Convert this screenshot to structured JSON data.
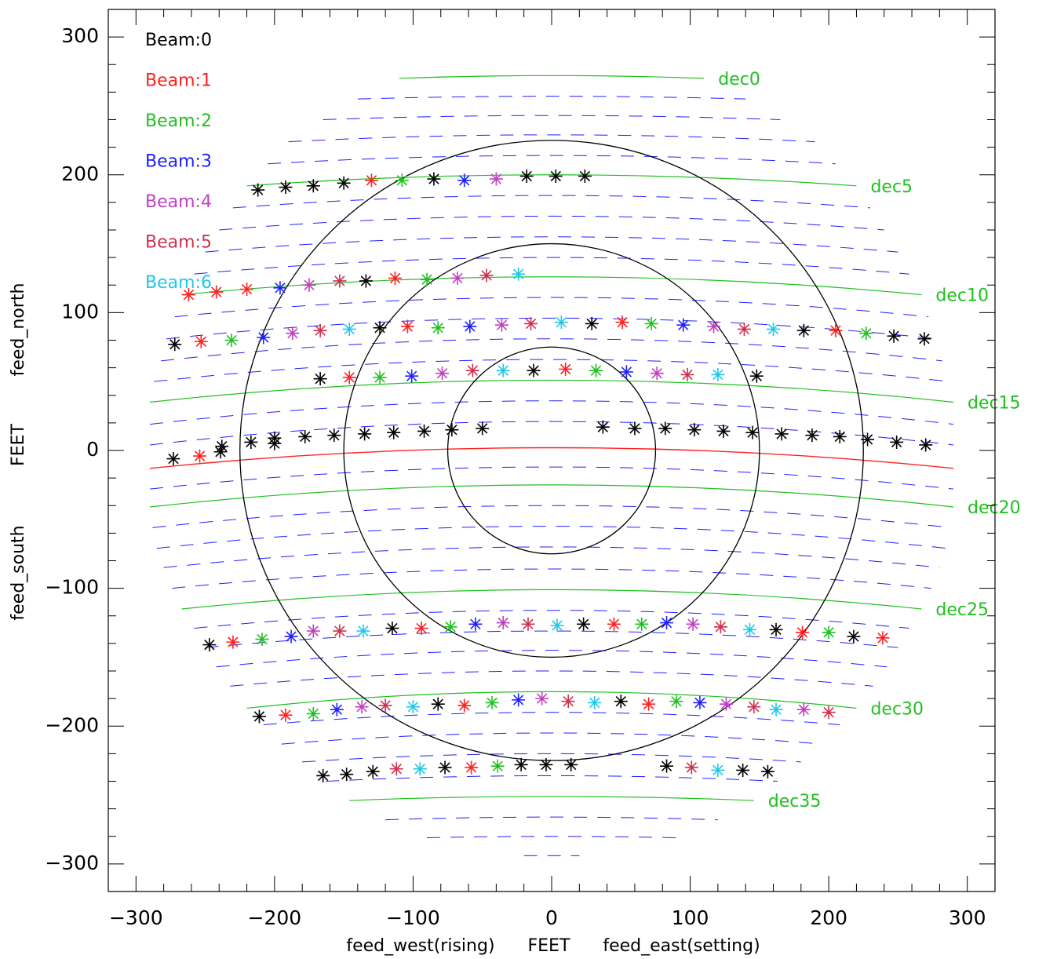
{
  "chart_data": {
    "type": "scatter",
    "title": "",
    "xlabel": "feed_west(rising)      FEET      feed_east(setting)",
    "ylabel_parts": [
      "feed_south",
      "FEET",
      "feed_north"
    ],
    "xlim": [
      -320,
      320
    ],
    "ylim": [
      -320,
      320
    ],
    "xticks": [
      -300,
      -200,
      -100,
      0,
      100,
      200,
      300
    ],
    "yticks": [
      -300,
      -200,
      -100,
      0,
      100,
      200,
      300
    ],
    "xtick_labels": [
      "−300",
      "−200",
      "−100",
      "0",
      "100",
      "200",
      "300"
    ],
    "ytick_labels": [
      "−300",
      "−200",
      "−100",
      "0",
      "100",
      "200",
      "300"
    ],
    "grid": false,
    "legend_position": "top-left",
    "beam_colors": [
      "#000000",
      "#ff2020",
      "#20c020",
      "#2020ff",
      "#c040c0",
      "#d03050",
      "#20c8e8"
    ],
    "legend": [
      "Beam:0",
      "Beam:1",
      "Beam:2",
      "Beam:3",
      "Beam:4",
      "Beam:5",
      "Beam:6"
    ],
    "circles": {
      "radii": [
        75,
        150,
        225
      ],
      "color": "#000000"
    },
    "zenith_line": {
      "color": "#ff2020",
      "y_center": 2,
      "y_edge": -13,
      "half_width": 290
    },
    "dec_lines": [
      {
        "label": "dec0",
        "y_center": 272,
        "y_edge": 270,
        "half_width": 110
      },
      {
        "label": "dec5",
        "y_center": 200,
        "y_edge": 192,
        "half_width": 220
      },
      {
        "label": "dec10",
        "y_center": 126,
        "y_edge": 113,
        "half_width": 267
      },
      {
        "label": "dec15",
        "y_center": 51,
        "y_edge": 35,
        "half_width": 290
      },
      {
        "label": "dec20",
        "y_center": -25,
        "y_edge": -41,
        "half_width": 290
      },
      {
        "label": "dec25",
        "y_center": -101,
        "y_edge": -115,
        "half_width": 267
      },
      {
        "label": "dec30",
        "y_center": -175,
        "y_edge": -187,
        "half_width": 220
      },
      {
        "label": "dec35",
        "y_center": -251,
        "y_edge": -254,
        "half_width": 146
      }
    ],
    "dec_line_color": "#20c020",
    "dashed_line_color": "#2020ff",
    "dashed_lines": [
      {
        "y_center": 257,
        "y_edge": 255,
        "half_width": 140
      },
      {
        "y_center": 243,
        "y_edge": 240,
        "half_width": 165
      },
      {
        "y_center": 229,
        "y_edge": 224,
        "half_width": 190
      },
      {
        "y_center": 214,
        "y_edge": 208,
        "half_width": 205
      },
      {
        "y_center": 185,
        "y_edge": 176,
        "half_width": 230
      },
      {
        "y_center": 170,
        "y_edge": 160,
        "half_width": 240
      },
      {
        "y_center": 155,
        "y_edge": 144,
        "half_width": 250
      },
      {
        "y_center": 140,
        "y_edge": 128,
        "half_width": 258
      },
      {
        "y_center": 111,
        "y_edge": 97,
        "half_width": 272
      },
      {
        "y_center": 96,
        "y_edge": 81,
        "half_width": 278
      },
      {
        "y_center": 81,
        "y_edge": 65,
        "half_width": 282
      },
      {
        "y_center": 66,
        "y_edge": 50,
        "half_width": 287
      },
      {
        "y_center": 36,
        "y_edge": 19,
        "half_width": 290
      },
      {
        "y_center": 21,
        "y_edge": 4,
        "half_width": 290
      },
      {
        "y_center": -12,
        "y_edge": -28,
        "half_width": 290
      },
      {
        "y_center": -40,
        "y_edge": -56,
        "half_width": 288
      },
      {
        "y_center": -55,
        "y_edge": -71,
        "half_width": 285
      },
      {
        "y_center": -70,
        "y_edge": -85,
        "half_width": 280
      },
      {
        "y_center": -86,
        "y_edge": -100,
        "half_width": 274
      },
      {
        "y_center": -116,
        "y_edge": -129,
        "half_width": 258
      },
      {
        "y_center": -131,
        "y_edge": -143,
        "half_width": 250
      },
      {
        "y_center": -145,
        "y_edge": -157,
        "half_width": 242
      },
      {
        "y_center": -160,
        "y_edge": -171,
        "half_width": 232
      },
      {
        "y_center": -190,
        "y_edge": -199,
        "half_width": 208
      },
      {
        "y_center": -205,
        "y_edge": -213,
        "half_width": 195
      },
      {
        "y_center": -220,
        "y_edge": -226,
        "half_width": 180
      },
      {
        "y_center": -236,
        "y_edge": -240,
        "half_width": 163
      },
      {
        "y_center": -266,
        "y_edge": -268,
        "half_width": 120
      },
      {
        "y_center": -280,
        "y_edge": -281,
        "half_width": 90
      },
      {
        "y_center": -294,
        "y_edge": -294,
        "half_width": 20
      }
    ],
    "points": [
      {
        "x": -212,
        "y": 189,
        "beam": 0
      },
      {
        "x": -192,
        "y": 191,
        "beam": 0
      },
      {
        "x": -172,
        "y": 192,
        "beam": 0
      },
      {
        "x": -150,
        "y": 194,
        "beam": 0
      },
      {
        "x": -130,
        "y": 196,
        "beam": 1
      },
      {
        "x": -108,
        "y": 196,
        "beam": 2
      },
      {
        "x": -85,
        "y": 197,
        "beam": 0
      },
      {
        "x": -63,
        "y": 196,
        "beam": 3
      },
      {
        "x": -40,
        "y": 197,
        "beam": 4
      },
      {
        "x": -18,
        "y": 199,
        "beam": 0
      },
      {
        "x": 3,
        "y": 199,
        "beam": 0
      },
      {
        "x": 24,
        "y": 199,
        "beam": 0
      },
      {
        "x": -262,
        "y": 113,
        "beam": 1
      },
      {
        "x": -242,
        "y": 115,
        "beam": 1
      },
      {
        "x": -220,
        "y": 117,
        "beam": 1
      },
      {
        "x": -196,
        "y": 118,
        "beam": 3
      },
      {
        "x": -175,
        "y": 120,
        "beam": 4
      },
      {
        "x": -153,
        "y": 123,
        "beam": 5
      },
      {
        "x": -134,
        "y": 123,
        "beam": 0
      },
      {
        "x": -113,
        "y": 125,
        "beam": 1
      },
      {
        "x": -90,
        "y": 124,
        "beam": 2
      },
      {
        "x": -68,
        "y": 125,
        "beam": 4
      },
      {
        "x": -47,
        "y": 127,
        "beam": 5
      },
      {
        "x": -24,
        "y": 128,
        "beam": 6
      },
      {
        "x": -272,
        "y": 77,
        "beam": 0
      },
      {
        "x": -253,
        "y": 79,
        "beam": 1
      },
      {
        "x": -231,
        "y": 80,
        "beam": 2
      },
      {
        "x": -208,
        "y": 82,
        "beam": 3
      },
      {
        "x": -187,
        "y": 85,
        "beam": 4
      },
      {
        "x": -167,
        "y": 87,
        "beam": 5
      },
      {
        "x": -146,
        "y": 88,
        "beam": 6
      },
      {
        "x": -124,
        "y": 89,
        "beam": 0
      },
      {
        "x": -104,
        "y": 90,
        "beam": 1
      },
      {
        "x": -82,
        "y": 89,
        "beam": 2
      },
      {
        "x": -59,
        "y": 90,
        "beam": 3
      },
      {
        "x": -36,
        "y": 91,
        "beam": 4
      },
      {
        "x": -15,
        "y": 92,
        "beam": 5
      },
      {
        "x": 7,
        "y": 93,
        "beam": 6
      },
      {
        "x": 29,
        "y": 92,
        "beam": 0
      },
      {
        "x": 51,
        "y": 93,
        "beam": 1
      },
      {
        "x": 72,
        "y": 92,
        "beam": 2
      },
      {
        "x": 95,
        "y": 91,
        "beam": 3
      },
      {
        "x": 117,
        "y": 90,
        "beam": 4
      },
      {
        "x": 139,
        "y": 88,
        "beam": 5
      },
      {
        "x": 160,
        "y": 88,
        "beam": 6
      },
      {
        "x": 182,
        "y": 87,
        "beam": 0
      },
      {
        "x": 205,
        "y": 87,
        "beam": 1
      },
      {
        "x": 227,
        "y": 85,
        "beam": 2
      },
      {
        "x": 247,
        "y": 83,
        "beam": 0
      },
      {
        "x": 269,
        "y": 81,
        "beam": 0
      },
      {
        "x": -167,
        "y": 52,
        "beam": 0
      },
      {
        "x": -146,
        "y": 53,
        "beam": 1
      },
      {
        "x": -124,
        "y": 53,
        "beam": 2
      },
      {
        "x": -101,
        "y": 54,
        "beam": 3
      },
      {
        "x": -79,
        "y": 56,
        "beam": 4
      },
      {
        "x": -57,
        "y": 58,
        "beam": 5
      },
      {
        "x": -35,
        "y": 58,
        "beam": 6
      },
      {
        "x": -13,
        "y": 58,
        "beam": 0
      },
      {
        "x": 10,
        "y": 59,
        "beam": 1
      },
      {
        "x": 32,
        "y": 58,
        "beam": 2
      },
      {
        "x": 54,
        "y": 57,
        "beam": 3
      },
      {
        "x": 76,
        "y": 56,
        "beam": 4
      },
      {
        "x": 98,
        "y": 55,
        "beam": 5
      },
      {
        "x": 120,
        "y": 55,
        "beam": 6
      },
      {
        "x": 148,
        "y": 54,
        "beam": 0
      },
      {
        "x": -273,
        "y": -6,
        "beam": 0
      },
      {
        "x": -254,
        "y": -4,
        "beam": 1
      },
      {
        "x": -239,
        "y": -1,
        "beam": 0
      },
      {
        "x": -238,
        "y": 3,
        "beam": 0
      },
      {
        "x": -217,
        "y": 6,
        "beam": 0
      },
      {
        "x": -200,
        "y": 5,
        "beam": 0
      },
      {
        "x": -200,
        "y": 9,
        "beam": 0
      },
      {
        "x": -178,
        "y": 10,
        "beam": 0
      },
      {
        "x": -157,
        "y": 11,
        "beam": 0
      },
      {
        "x": -135,
        "y": 12,
        "beam": 0
      },
      {
        "x": -114,
        "y": 13,
        "beam": 0
      },
      {
        "x": -92,
        "y": 14,
        "beam": 0
      },
      {
        "x": -72,
        "y": 15,
        "beam": 0
      },
      {
        "x": -50,
        "y": 16,
        "beam": 0
      },
      {
        "x": 37,
        "y": 17,
        "beam": 0
      },
      {
        "x": 60,
        "y": 16,
        "beam": 0
      },
      {
        "x": 82,
        "y": 16,
        "beam": 0
      },
      {
        "x": 103,
        "y": 15,
        "beam": 0
      },
      {
        "x": 124,
        "y": 14,
        "beam": 0
      },
      {
        "x": 145,
        "y": 13,
        "beam": 0
      },
      {
        "x": 166,
        "y": 12,
        "beam": 0
      },
      {
        "x": 188,
        "y": 11,
        "beam": 0
      },
      {
        "x": 208,
        "y": 10,
        "beam": 0
      },
      {
        "x": 228,
        "y": 8,
        "beam": 0
      },
      {
        "x": 249,
        "y": 6,
        "beam": 0
      },
      {
        "x": 270,
        "y": 4,
        "beam": 0
      },
      {
        "x": -247,
        "y": -141,
        "beam": 0
      },
      {
        "x": -230,
        "y": -139,
        "beam": 1
      },
      {
        "x": -209,
        "y": -137,
        "beam": 2
      },
      {
        "x": -188,
        "y": -135,
        "beam": 3
      },
      {
        "x": -172,
        "y": -131,
        "beam": 4
      },
      {
        "x": -153,
        "y": -131,
        "beam": 5
      },
      {
        "x": -136,
        "y": -131,
        "beam": 6
      },
      {
        "x": -115,
        "y": -129,
        "beam": 0
      },
      {
        "x": -94,
        "y": -129,
        "beam": 1
      },
      {
        "x": -73,
        "y": -128,
        "beam": 2
      },
      {
        "x": -55,
        "y": -126,
        "beam": 3
      },
      {
        "x": -35,
        "y": -125,
        "beam": 4
      },
      {
        "x": -17,
        "y": -126,
        "beam": 5
      },
      {
        "x": 4,
        "y": -127,
        "beam": 6
      },
      {
        "x": 23,
        "y": -126,
        "beam": 0
      },
      {
        "x": 45,
        "y": -126,
        "beam": 1
      },
      {
        "x": 65,
        "y": -126,
        "beam": 2
      },
      {
        "x": 83,
        "y": -125,
        "beam": 3
      },
      {
        "x": 102,
        "y": -126,
        "beam": 4
      },
      {
        "x": 122,
        "y": -128,
        "beam": 5
      },
      {
        "x": 143,
        "y": -130,
        "beam": 6
      },
      {
        "x": 162,
        "y": -130,
        "beam": 0
      },
      {
        "x": 181,
        "y": -132,
        "beam": 1
      },
      {
        "x": 200,
        "y": -132,
        "beam": 2
      },
      {
        "x": 218,
        "y": -135,
        "beam": 0
      },
      {
        "x": 239,
        "y": -136,
        "beam": 1
      },
      {
        "x": -211,
        "y": -193,
        "beam": 0
      },
      {
        "x": -192,
        "y": -192,
        "beam": 1
      },
      {
        "x": -172,
        "y": -191,
        "beam": 2
      },
      {
        "x": -155,
        "y": -188,
        "beam": 3
      },
      {
        "x": -137,
        "y": -186,
        "beam": 4
      },
      {
        "x": -120,
        "y": -185,
        "beam": 5
      },
      {
        "x": -100,
        "y": -186,
        "beam": 6
      },
      {
        "x": -82,
        "y": -184,
        "beam": 0
      },
      {
        "x": -63,
        "y": -185,
        "beam": 1
      },
      {
        "x": -43,
        "y": -183,
        "beam": 2
      },
      {
        "x": -24,
        "y": -181,
        "beam": 3
      },
      {
        "x": -7,
        "y": -180,
        "beam": 4
      },
      {
        "x": 12,
        "y": -182,
        "beam": 5
      },
      {
        "x": 31,
        "y": -183,
        "beam": 6
      },
      {
        "x": 50,
        "y": -182,
        "beam": 0
      },
      {
        "x": 70,
        "y": -184,
        "beam": 1
      },
      {
        "x": 90,
        "y": -182,
        "beam": 2
      },
      {
        "x": 107,
        "y": -183,
        "beam": 3
      },
      {
        "x": 126,
        "y": -184,
        "beam": 4
      },
      {
        "x": 146,
        "y": -186,
        "beam": 5
      },
      {
        "x": 162,
        "y": -188,
        "beam": 6
      },
      {
        "x": 182,
        "y": -188,
        "beam": 4
      },
      {
        "x": 200,
        "y": -190,
        "beam": 5
      },
      {
        "x": -165,
        "y": -236,
        "beam": 0
      },
      {
        "x": -148,
        "y": -235,
        "beam": 0
      },
      {
        "x": -129,
        "y": -233,
        "beam": 0
      },
      {
        "x": -112,
        "y": -231,
        "beam": 5
      },
      {
        "x": -95,
        "y": -231,
        "beam": 6
      },
      {
        "x": -77,
        "y": -230,
        "beam": 0
      },
      {
        "x": -58,
        "y": -230,
        "beam": 1
      },
      {
        "x": -39,
        "y": -229,
        "beam": 2
      },
      {
        "x": -22,
        "y": -228,
        "beam": 0
      },
      {
        "x": -4,
        "y": -228,
        "beam": 0
      },
      {
        "x": 14,
        "y": -228,
        "beam": 0
      },
      {
        "x": 83,
        "y": -229,
        "beam": 0
      },
      {
        "x": 101,
        "y": -230,
        "beam": 5
      },
      {
        "x": 120,
        "y": -232,
        "beam": 6
      },
      {
        "x": 138,
        "y": -232,
        "beam": 0
      },
      {
        "x": 156,
        "y": -233,
        "beam": 0
      }
    ]
  }
}
